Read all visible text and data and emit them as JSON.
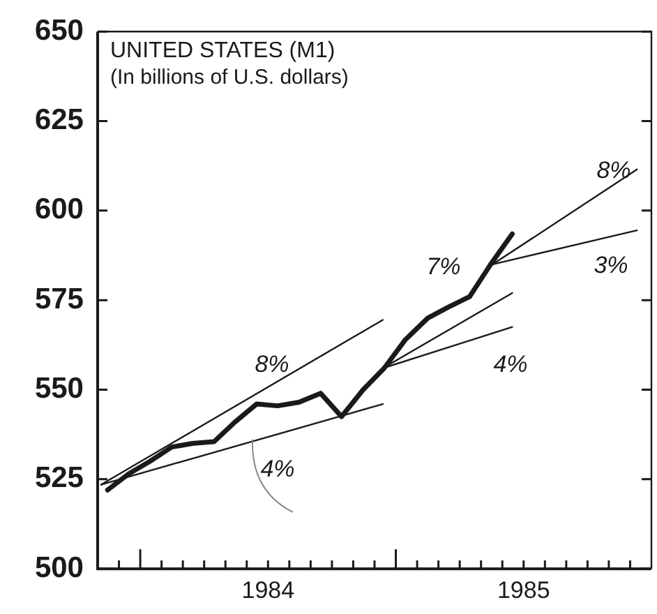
{
  "chart_data": {
    "type": "line",
    "title": "UNITED STATES (M1)",
    "subtitle": "(In billions of U.S. dollars)",
    "xlim": [
      "1983-11",
      "1986-01"
    ],
    "xticks": [
      {
        "value": "1983-12",
        "label": null
      },
      {
        "value": "1984-01",
        "label": null
      },
      {
        "value": "1984-02",
        "label": null
      },
      {
        "value": "1984-03",
        "label": null
      },
      {
        "value": "1984-04",
        "label": null
      },
      {
        "value": "1984-05",
        "label": null
      },
      {
        "value": "1984-06",
        "label": null
      },
      {
        "value": "1984-07",
        "label": "1984"
      },
      {
        "value": "1984-08",
        "label": null
      },
      {
        "value": "1984-09",
        "label": null
      },
      {
        "value": "1984-10",
        "label": null
      },
      {
        "value": "1984-11",
        "label": null
      },
      {
        "value": "1984-12",
        "label": null
      },
      {
        "value": "1985-01",
        "label": null
      },
      {
        "value": "1985-02",
        "label": null
      },
      {
        "value": "1985-03",
        "label": null
      },
      {
        "value": "1985-04",
        "label": null
      },
      {
        "value": "1985-05",
        "label": null
      },
      {
        "value": "1985-06",
        "label": null
      },
      {
        "value": "1985-07",
        "label": "1985"
      },
      {
        "value": "1985-08",
        "label": null
      },
      {
        "value": "1985-09",
        "label": null
      },
      {
        "value": "1985-10",
        "label": null
      },
      {
        "value": "1985-11",
        "label": null
      },
      {
        "value": "1985-12",
        "label": null
      }
    ],
    "ylim": [
      500,
      650
    ],
    "yticks": [
      500,
      525,
      550,
      575,
      600,
      625,
      650
    ],
    "grid": false,
    "legend": false,
    "marker": "none",
    "line_style": "solid",
    "series": [
      {
        "color": "#1a1a1a",
        "x": [
          "1983-11-15",
          "1983-12-15",
          "1984-01-15",
          "1984-02-15",
          "1984-03-15",
          "1984-04-15",
          "1984-05-15",
          "1984-06-15",
          "1984-07-15",
          "1984-08-15",
          "1984-09-15",
          "1984-10-15",
          "1984-11-15",
          "1984-12-15",
          "1985-01-15",
          "1985-02-15",
          "1985-03-15",
          "1985-04-15",
          "1985-05-15",
          "1985-06-15"
        ],
        "values": [
          522,
          526.5,
          530,
          534,
          535,
          535.5,
          541,
          546,
          545.5,
          546.5,
          549,
          542.5,
          550,
          556,
          564,
          570,
          573,
          576,
          585,
          593.5
        ]
      },
      {
        "color": "#1a1a1a",
        "x": [
          "1983-11-06",
          "1984-12-13"
        ],
        "values": [
          523.5,
          569.5
        ]
      },
      {
        "color": "#1a1a1a",
        "x": [
          "1983-11-06",
          "1984-12-13"
        ],
        "values": [
          523.5,
          546
        ]
      },
      {
        "color": "#1a1a1a",
        "x": [
          "1984-12-13",
          "1985-06-15"
        ],
        "values": [
          556,
          577
        ]
      },
      {
        "color": "#1a1a1a",
        "x": [
          "1984-12-13",
          "1985-06-15"
        ],
        "values": [
          556,
          567.5
        ]
      },
      {
        "color": "#1a1a1a",
        "x": [
          "1985-05-18",
          "1985-12-11"
        ],
        "values": [
          585,
          611.5
        ]
      },
      {
        "color": "#1a1a1a",
        "x": [
          "1985-05-18",
          "1985-12-11"
        ],
        "values": [
          585,
          594.5
        ]
      }
    ],
    "annotations": [
      "8%",
      "4%",
      "7%",
      "4%",
      "8%",
      "3%"
    ]
  }
}
